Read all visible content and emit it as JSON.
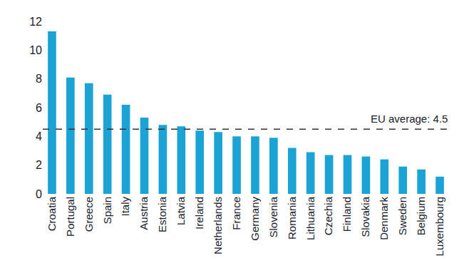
{
  "chart_data": {
    "type": "bar",
    "categories": [
      "Croatia",
      "Portugal",
      "Greece",
      "Spain",
      "Italy",
      "Austria",
      "Estonia",
      "Latvia",
      "Ireland",
      "Netherlands",
      "France",
      "Germany",
      "Slovenia",
      "Romania",
      "Lithuania",
      "Czechia",
      "Finland",
      "Slovakia",
      "Denmark",
      "Sweden",
      "Belgium",
      "Luxembourg"
    ],
    "values": [
      11.3,
      8.1,
      7.7,
      6.9,
      6.2,
      5.3,
      4.8,
      4.7,
      4.4,
      4.3,
      4.0,
      4.0,
      3.9,
      3.2,
      2.9,
      2.7,
      2.7,
      2.6,
      2.4,
      1.9,
      1.7,
      1.2
    ],
    "color": "#1aa3d4",
    "ylim": [
      0,
      12
    ],
    "yticks": [
      0,
      2,
      4,
      6,
      8,
      10,
      12
    ],
    "grid": false,
    "reference_line": {
      "value": 4.5,
      "label": "EU average: 4.5"
    }
  }
}
